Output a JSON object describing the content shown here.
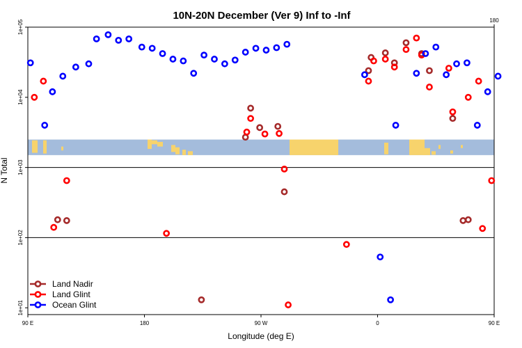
{
  "chart_data": {
    "type": "scatter",
    "title": "10N-20N December (Ver 9)   Inf to -Inf",
    "xlabel": "Longitude (deg E)",
    "ylabel": "N Total",
    "xscale": "linear",
    "yscale": "log",
    "xlim": [
      90,
      450
    ],
    "ylim": [
      8,
      100000
    ],
    "x_ticks": [
      {
        "value": 90,
        "label": "90 E"
      },
      {
        "value": 180,
        "label": "180"
      },
      {
        "value": 270,
        "label": "90 W"
      },
      {
        "value": 360,
        "label": "0"
      },
      {
        "value": 450,
        "label": "90 E"
      }
    ],
    "x_ticks_top": [
      {
        "value": 450,
        "label": "180"
      }
    ],
    "y_ticks": [
      {
        "value": 10,
        "label": "1e+01"
      },
      {
        "value": 100,
        "label": "1e+02"
      },
      {
        "value": 1000,
        "label": "1e+03"
      },
      {
        "value": 10000,
        "label": "1e+04"
      },
      {
        "value": 100000,
        "label": "1e+05"
      }
    ],
    "hlines": [
      1000,
      100
    ],
    "map_band": {
      "ymin": 1500,
      "ymax": 2500
    },
    "legend": {
      "position": "bottom-left"
    },
    "series": [
      {
        "name": "Land Nadir",
        "color": "#a52a2a",
        "points": [
          {
            "x": 113,
            "y": 180
          },
          {
            "x": 120,
            "y": 175
          },
          {
            "x": 224,
            "y": 13
          },
          {
            "x": 258,
            "y": 2700
          },
          {
            "x": 262,
            "y": 7000
          },
          {
            "x": 269,
            "y": 3700
          },
          {
            "x": 283,
            "y": 3850
          },
          {
            "x": 288,
            "y": 450
          },
          {
            "x": 353,
            "y": 24000
          },
          {
            "x": 355,
            "y": 37000
          },
          {
            "x": 366,
            "y": 43000
          },
          {
            "x": 373,
            "y": 31000
          },
          {
            "x": 382,
            "y": 60000
          },
          {
            "x": 394,
            "y": 42000
          },
          {
            "x": 400,
            "y": 24000
          },
          {
            "x": 418,
            "y": 5000
          },
          {
            "x": 426,
            "y": 175
          },
          {
            "x": 430,
            "y": 180
          }
        ]
      },
      {
        "name": "Land Glint",
        "color": "#ff0000",
        "points": [
          {
            "x": 95,
            "y": 10000
          },
          {
            "x": 102,
            "y": 17000
          },
          {
            "x": 110,
            "y": 140
          },
          {
            "x": 120,
            "y": 650
          },
          {
            "x": 197,
            "y": 115
          },
          {
            "x": 259,
            "y": 3200
          },
          {
            "x": 262,
            "y": 5000
          },
          {
            "x": 273,
            "y": 3000
          },
          {
            "x": 284,
            "y": 3050
          },
          {
            "x": 288,
            "y": 950
          },
          {
            "x": 291,
            "y": 11
          },
          {
            "x": 336,
            "y": 80
          },
          {
            "x": 353,
            "y": 17000
          },
          {
            "x": 357,
            "y": 33000
          },
          {
            "x": 366,
            "y": 35000
          },
          {
            "x": 373,
            "y": 27000
          },
          {
            "x": 382,
            "y": 48000
          },
          {
            "x": 390,
            "y": 70000
          },
          {
            "x": 394,
            "y": 40000
          },
          {
            "x": 400,
            "y": 14000
          },
          {
            "x": 415,
            "y": 26000
          },
          {
            "x": 418,
            "y": 6200
          },
          {
            "x": 430,
            "y": 10000
          },
          {
            "x": 438,
            "y": 17000
          },
          {
            "x": 441,
            "y": 135
          },
          {
            "x": 448,
            "y": 650
          }
        ]
      },
      {
        "name": "Ocean Glint",
        "color": "#0000ff",
        "points": [
          {
            "x": 92,
            "y": 31000
          },
          {
            "x": 103,
            "y": 4000
          },
          {
            "x": 109,
            "y": 12000
          },
          {
            "x": 117,
            "y": 20000
          },
          {
            "x": 127,
            "y": 27000
          },
          {
            "x": 137,
            "y": 30000
          },
          {
            "x": 143,
            "y": 68000
          },
          {
            "x": 152,
            "y": 78000
          },
          {
            "x": 160,
            "y": 65000
          },
          {
            "x": 168,
            "y": 68000
          },
          {
            "x": 178,
            "y": 52000
          },
          {
            "x": 186,
            "y": 50000
          },
          {
            "x": 194,
            "y": 42000
          },
          {
            "x": 202,
            "y": 35000
          },
          {
            "x": 210,
            "y": 33000
          },
          {
            "x": 218,
            "y": 22000
          },
          {
            "x": 226,
            "y": 40000
          },
          {
            "x": 234,
            "y": 35000
          },
          {
            "x": 242,
            "y": 30000
          },
          {
            "x": 250,
            "y": 34000
          },
          {
            "x": 258,
            "y": 44000
          },
          {
            "x": 266,
            "y": 50000
          },
          {
            "x": 274,
            "y": 47000
          },
          {
            "x": 282,
            "y": 51000
          },
          {
            "x": 290,
            "y": 57000
          },
          {
            "x": 350,
            "y": 21000
          },
          {
            "x": 362,
            "y": 53
          },
          {
            "x": 370,
            "y": 13
          },
          {
            "x": 374,
            "y": 4000
          },
          {
            "x": 390,
            "y": 22000
          },
          {
            "x": 397,
            "y": 42000
          },
          {
            "x": 405,
            "y": 52000
          },
          {
            "x": 413,
            "y": 21000
          },
          {
            "x": 421,
            "y": 30000
          },
          {
            "x": 429,
            "y": 31000
          },
          {
            "x": 437,
            "y": 4000
          },
          {
            "x": 445,
            "y": 12000
          },
          {
            "x": 453,
            "y": 20000
          }
        ]
      }
    ]
  }
}
